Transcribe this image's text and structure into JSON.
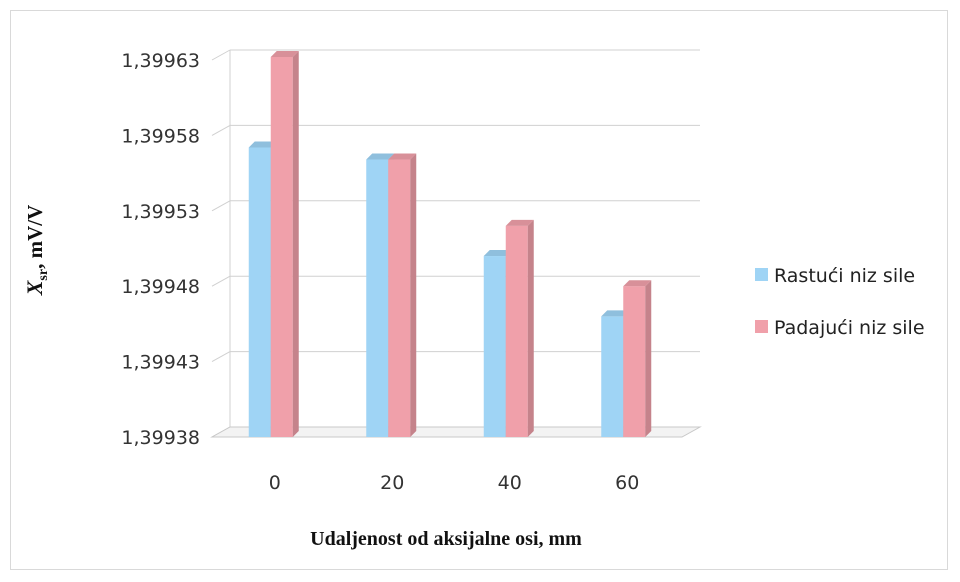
{
  "chart_data": {
    "type": "bar",
    "title": "",
    "xlabel": "Udaljenost od aksijalne osi, mm",
    "ylabel": {
      "symbol": "X",
      "subscript": "sr",
      "unit": ", mV/V"
    },
    "categories": [
      "0",
      "20",
      "40",
      "60"
    ],
    "series": [
      {
        "name": "Rastući niz sile",
        "values": [
          1.399572,
          1.399564,
          1.3995,
          1.39946
        ],
        "color": "#9fd4f5"
      },
      {
        "name": "Padajući niz sile",
        "values": [
          1.399632,
          1.399564,
          1.39952,
          1.39948
        ],
        "color": "#f0a0aa"
      }
    ],
    "ylim": [
      1.39938,
      1.39963
    ],
    "yticks": [
      1.39938,
      1.39943,
      1.39948,
      1.39953,
      1.39958,
      1.39963
    ],
    "ytick_labels": [
      "1,39938",
      "1,39943",
      "1,39948",
      "1,39953",
      "1,39958",
      "1,39963"
    ],
    "grid": true,
    "legend": "right",
    "style": "3d-column"
  }
}
